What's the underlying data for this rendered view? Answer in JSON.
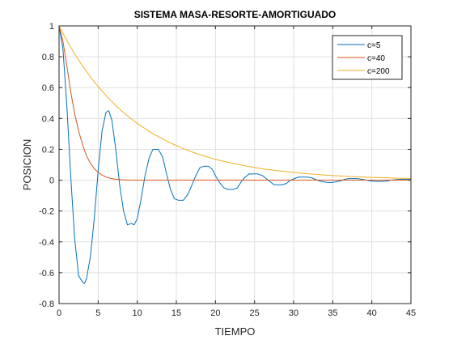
{
  "chart_data": {
    "type": "line",
    "title": "SISTEMA MASA-RESORTE-AMORTIGUADO",
    "xlabel": "TIEMPO",
    "ylabel": "POSICION",
    "xlim": [
      0,
      45
    ],
    "ylim": [
      -0.8,
      1
    ],
    "xticks": [
      0,
      5,
      10,
      15,
      20,
      25,
      30,
      35,
      40,
      45
    ],
    "yticks": [
      -0.8,
      -0.6,
      -0.4,
      -0.2,
      0,
      0.2,
      0.4,
      0.6,
      0.8,
      1
    ],
    "xtick_labels": [
      "0",
      "5",
      "10",
      "15",
      "20",
      "25",
      "30",
      "35",
      "40",
      "45"
    ],
    "ytick_labels": [
      "-0.8",
      "-0.6",
      "-0.4",
      "-0.2",
      "0",
      "0.2",
      "0.4",
      "0.6",
      "0.8",
      "1"
    ],
    "grid": true,
    "legend_position": "top-right",
    "series": [
      {
        "name": "c=5",
        "color": "#0072bd",
        "x": [
          0,
          0.5,
          1,
          1.5,
          2,
          2.5,
          3,
          3.25,
          3.5,
          4,
          4.5,
          5,
          5.5,
          6,
          6.35,
          6.75,
          7.25,
          7.75,
          8.25,
          8.75,
          9.25,
          9.6,
          10,
          10.5,
          11,
          11.5,
          12,
          12.7,
          13.25,
          13.75,
          14.25,
          14.75,
          15.25,
          15.9,
          16.5,
          17,
          17.5,
          18,
          18.5,
          19.1,
          19.6,
          20.1,
          20.6,
          21.1,
          21.6,
          22.3,
          22.8,
          23.3,
          23.8,
          24.3,
          24.8,
          25.4,
          26,
          26.5,
          27,
          27.5,
          28,
          28.6,
          29.1,
          29.6,
          30.1,
          30.6,
          31.1,
          31.8,
          32.3,
          32.8,
          33.3,
          33.8,
          34.3,
          34.9,
          35.5,
          36,
          36.5,
          37,
          37.5,
          38.1,
          38.6,
          39.1,
          39.6,
          40.1,
          40.6,
          41.3,
          41.8,
          42.3,
          42.8,
          43.3,
          43.8,
          44.4,
          45
        ],
        "values": [
          1,
          0.85,
          0.48,
          0.02,
          -0.38,
          -0.62,
          -0.66,
          -0.67,
          -0.64,
          -0.5,
          -0.25,
          0.06,
          0.32,
          0.44,
          0.45,
          0.39,
          0.2,
          -0.03,
          -0.2,
          -0.29,
          -0.28,
          -0.29,
          -0.25,
          -0.12,
          0.03,
          0.14,
          0.2,
          0.2,
          0.15,
          0.04,
          -0.06,
          -0.12,
          -0.13,
          -0.13,
          -0.09,
          -0.03,
          0.03,
          0.08,
          0.09,
          0.09,
          0.07,
          0.02,
          -0.02,
          -0.05,
          -0.06,
          -0.06,
          -0.05,
          -0.01,
          0.02,
          0.04,
          0.04,
          0.04,
          0.03,
          0.01,
          -0.01,
          -0.03,
          -0.03,
          -0.03,
          -0.02,
          0,
          0.01,
          0.02,
          0.02,
          0.02,
          0.015,
          0.005,
          -0.005,
          -0.01,
          -0.015,
          -0.015,
          -0.01,
          -0.005,
          0.005,
          0.01,
          0.01,
          0.01,
          0.007,
          0.002,
          -0.003,
          -0.006,
          -0.008,
          -0.008,
          -0.006,
          -0.002,
          0.002,
          0.004,
          0.005,
          0.005,
          0.003
        ]
      },
      {
        "name": "c=40",
        "color": "#d95319",
        "x": [
          0,
          0.5,
          1,
          1.5,
          2,
          2.5,
          3,
          3.5,
          4,
          4.5,
          5,
          5.5,
          6,
          6.5,
          7,
          7.5,
          8,
          9,
          10,
          12,
          15,
          20,
          25,
          30,
          35,
          40,
          45
        ],
        "values": [
          1,
          0.9,
          0.74,
          0.57,
          0.43,
          0.32,
          0.23,
          0.16,
          0.11,
          0.075,
          0.05,
          0.033,
          0.021,
          0.013,
          0.008,
          0.005,
          0.003,
          0.001,
          0.0005,
          0,
          0,
          0,
          0,
          0,
          0,
          0,
          0
        ]
      },
      {
        "name": "c=200",
        "color": "#edb120",
        "x": [
          0,
          1,
          2,
          3,
          4,
          5,
          6,
          7,
          8,
          9,
          10,
          12,
          14,
          16,
          18,
          20,
          22,
          24,
          26,
          28,
          30,
          32,
          34,
          36,
          38,
          40,
          42,
          45
        ],
        "values": [
          1,
          0.905,
          0.819,
          0.741,
          0.67,
          0.607,
          0.549,
          0.497,
          0.449,
          0.407,
          0.368,
          0.301,
          0.247,
          0.202,
          0.165,
          0.135,
          0.111,
          0.091,
          0.074,
          0.061,
          0.05,
          0.041,
          0.033,
          0.027,
          0.022,
          0.018,
          0.015,
          0.011
        ]
      }
    ]
  }
}
